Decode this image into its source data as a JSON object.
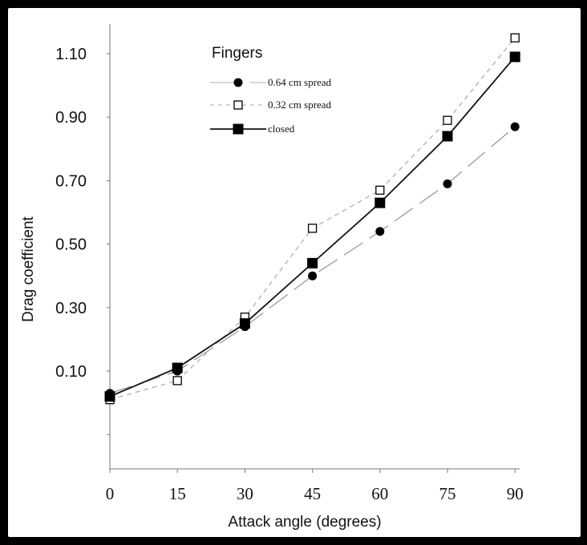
{
  "chart_data": {
    "type": "line",
    "xlabel": "Attack angle (degrees)",
    "ylabel": "Drag coefficient",
    "x": [
      0,
      15,
      30,
      45,
      60,
      75,
      90
    ],
    "x_ticks": [
      "0",
      "15",
      "30",
      "45",
      "60",
      "75",
      "90"
    ],
    "y_ticks": [
      "0.10",
      "0.30",
      "0.50",
      "0.70",
      "0.90",
      "1.10"
    ],
    "y_tick_values": [
      0.1,
      0.3,
      0.5,
      0.7,
      0.9,
      1.1
    ],
    "ylim": [
      -0.2,
      1.23
    ],
    "grid": false,
    "legend": {
      "title": "Fingers",
      "placement": "top-left"
    },
    "series": [
      {
        "name": "0.64 cm spread",
        "marker": "circle-filled",
        "line": "long-dash",
        "color": "#9a9a9a",
        "values": [
          0.03,
          0.1,
          0.24,
          0.4,
          0.54,
          0.69,
          0.87
        ]
      },
      {
        "name": "0.32 cm spread",
        "marker": "square-open",
        "line": "short-dash",
        "color": "#b0b0b0",
        "values": [
          0.01,
          0.07,
          0.27,
          0.55,
          0.67,
          0.89,
          1.15
        ]
      },
      {
        "name": "closed",
        "marker": "square-filled",
        "line": "solid",
        "color": "#111111",
        "values": [
          0.02,
          0.11,
          0.25,
          0.44,
          0.63,
          0.84,
          1.09
        ]
      }
    ]
  }
}
